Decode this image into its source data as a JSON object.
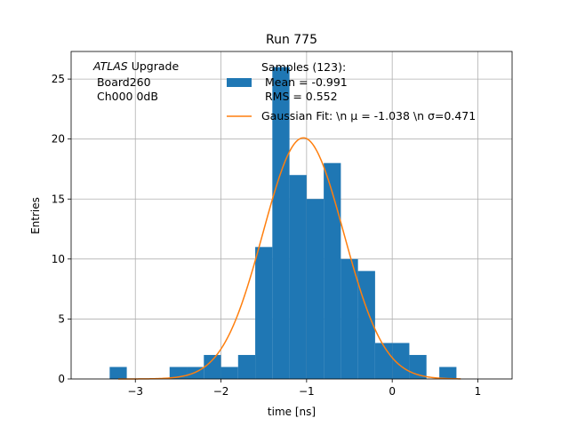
{
  "chart_data": {
    "type": "bar",
    "title": "Run 775",
    "xlabel": "time [ns]",
    "ylabel": "Entries",
    "xlim": [
      -3.75,
      1.4
    ],
    "ylim": [
      0,
      27.3
    ],
    "x_ticks": [
      -3,
      -2,
      -1,
      0,
      1
    ],
    "x_tick_labels": [
      "−3",
      "−2",
      "−1",
      "0",
      "1"
    ],
    "y_ticks": [
      0,
      5,
      10,
      15,
      20,
      25
    ],
    "y_tick_labels": [
      "0",
      "5",
      "10",
      "15",
      "20",
      "25"
    ],
    "grid": true,
    "bin_width": 0.2,
    "bins": [
      {
        "x0": -3.3,
        "count": 1
      },
      {
        "x0": -3.1,
        "count": 0
      },
      {
        "x0": -2.9,
        "count": 0
      },
      {
        "x0": -2.7,
        "count": 0
      },
      {
        "x0": -2.6,
        "count": 1
      },
      {
        "x0": -2.4,
        "count": 1
      },
      {
        "x0": -2.2,
        "count": 2
      },
      {
        "x0": -2.0,
        "count": 1
      },
      {
        "x0": -1.8,
        "count": 2
      },
      {
        "x0": -1.6,
        "count": 11
      },
      {
        "x0": -1.4,
        "count": 26
      },
      {
        "x0": -1.2,
        "count": 17
      },
      {
        "x0": -1.0,
        "count": 15
      },
      {
        "x0": -0.8,
        "count": 18
      },
      {
        "x0": -0.6,
        "count": 10
      },
      {
        "x0": -0.4,
        "count": 9
      },
      {
        "x0": -0.2,
        "count": 3
      },
      {
        "x0": 0.0,
        "count": 3
      },
      {
        "x0": 0.2,
        "count": 2
      },
      {
        "x0": 0.4,
        "count": 0
      },
      {
        "x0": 0.55,
        "count": 1
      }
    ],
    "fit": {
      "amplitude": 20.1,
      "mean": -1.038,
      "sigma": 0.471,
      "x_range": [
        -3.2,
        0.8
      ]
    },
    "colors": {
      "histogram": "#1f77b4",
      "fit": "#ff7f0e",
      "grid": "#b0b0b0"
    },
    "annotation_lines": [
      "ATLAS Upgrade",
      " Board260",
      " Ch000 0dB"
    ],
    "annotation_italic_word": "ATLAS",
    "legend_placement": "upper-center",
    "legend": {
      "histogram_lines": [
        "Samples (123):",
        " Mean = -0.991",
        " RMS = 0.552"
      ],
      "fit_label": "Gaussian Fit: \\n μ = -1.038 \\n σ=0.471"
    }
  }
}
